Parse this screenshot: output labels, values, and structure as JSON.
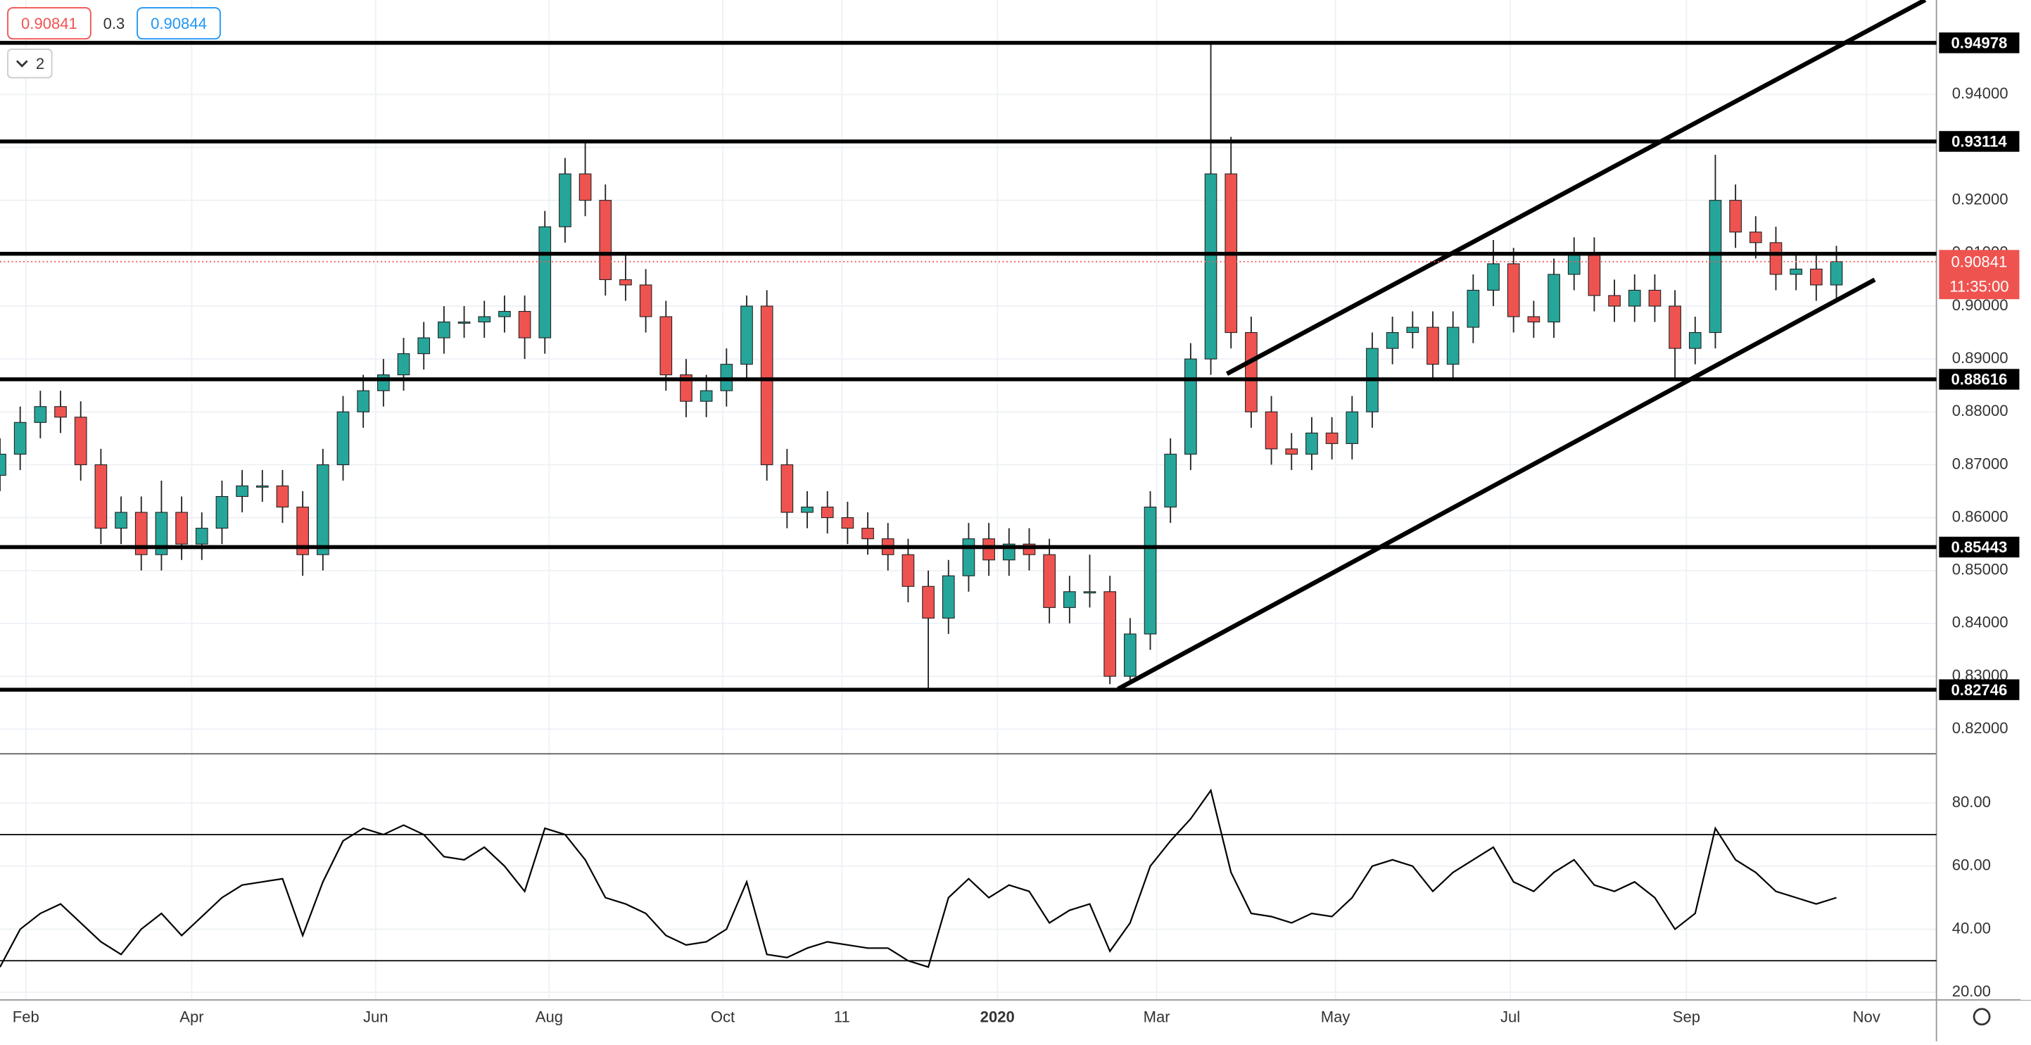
{
  "legend": {
    "price": "0.90841",
    "spread": "0.3",
    "ask": "0.90844",
    "panes": "2"
  },
  "chart_data": [
    {
      "type": "candlestick",
      "up_color": "#26a69a",
      "down_color": "#ef5350",
      "x_labels": [
        "Feb",
        "Apr",
        "Jun",
        "Aug",
        "Oct",
        "11",
        "2020",
        "Mar",
        "May",
        "Jul",
        "Sep",
        "Nov"
      ],
      "open": [
        0.868,
        0.872,
        0.878,
        0.881,
        0.879,
        0.87,
        0.858,
        0.861,
        0.853,
        0.861,
        0.855,
        0.858,
        0.864,
        0.866,
        0.866,
        0.862,
        0.853,
        0.87,
        0.88,
        0.884,
        0.887,
        0.891,
        0.894,
        0.897,
        0.897,
        0.898,
        0.899,
        0.894,
        0.915,
        0.925,
        0.92,
        0.905,
        0.904,
        0.898,
        0.887,
        0.882,
        0.884,
        0.889,
        0.9,
        0.87,
        0.861,
        0.862,
        0.86,
        0.858,
        0.856,
        0.853,
        0.847,
        0.841,
        0.849,
        0.856,
        0.852,
        0.855,
        0.853,
        0.843,
        0.846,
        0.846,
        0.83,
        0.838,
        0.862,
        0.872,
        0.89,
        0.925,
        0.895,
        0.88,
        0.873,
        0.872,
        0.876,
        0.874,
        0.88,
        0.892,
        0.895,
        0.896,
        0.889,
        0.896,
        0.903,
        0.908,
        0.898,
        0.897,
        0.906,
        0.91,
        0.902,
        0.9,
        0.903,
        0.9,
        0.892,
        0.895,
        0.92,
        0.914,
        0.912,
        0.906,
        0.907,
        0.904
      ],
      "high": [
        0.875,
        0.881,
        0.884,
        0.884,
        0.882,
        0.873,
        0.864,
        0.864,
        0.867,
        0.864,
        0.861,
        0.867,
        0.869,
        0.869,
        0.869,
        0.865,
        0.873,
        0.883,
        0.887,
        0.89,
        0.894,
        0.897,
        0.9,
        0.9,
        0.901,
        0.902,
        0.902,
        0.918,
        0.928,
        0.931,
        0.923,
        0.91,
        0.907,
        0.901,
        0.89,
        0.887,
        0.892,
        0.902,
        0.903,
        0.873,
        0.865,
        0.865,
        0.863,
        0.861,
        0.859,
        0.856,
        0.85,
        0.852,
        0.859,
        0.859,
        0.858,
        0.858,
        0.856,
        0.849,
        0.853,
        0.849,
        0.841,
        0.865,
        0.875,
        0.893,
        0.9498,
        0.932,
        0.898,
        0.883,
        0.876,
        0.879,
        0.879,
        0.883,
        0.895,
        0.898,
        0.899,
        0.899,
        0.899,
        0.906,
        0.9125,
        0.911,
        0.901,
        0.909,
        0.913,
        0.913,
        0.905,
        0.906,
        0.906,
        0.903,
        0.898,
        0.9286,
        0.923,
        0.917,
        0.915,
        0.91,
        0.91,
        0.9114
      ],
      "low": [
        0.865,
        0.869,
        0.875,
        0.876,
        0.867,
        0.855,
        0.855,
        0.85,
        0.85,
        0.852,
        0.852,
        0.855,
        0.861,
        0.863,
        0.859,
        0.849,
        0.85,
        0.867,
        0.877,
        0.881,
        0.884,
        0.888,
        0.891,
        0.894,
        0.894,
        0.895,
        0.89,
        0.891,
        0.912,
        0.917,
        0.902,
        0.901,
        0.895,
        0.884,
        0.879,
        0.879,
        0.881,
        0.886,
        0.867,
        0.858,
        0.858,
        0.857,
        0.855,
        0.853,
        0.85,
        0.844,
        0.8275,
        0.838,
        0.846,
        0.849,
        0.849,
        0.85,
        0.84,
        0.84,
        0.843,
        0.8285,
        0.829,
        0.835,
        0.859,
        0.869,
        0.887,
        0.892,
        0.877,
        0.87,
        0.869,
        0.869,
        0.871,
        0.871,
        0.877,
        0.889,
        0.892,
        0.886,
        0.886,
        0.893,
        0.9,
        0.895,
        0.894,
        0.894,
        0.903,
        0.899,
        0.897,
        0.897,
        0.897,
        0.8865,
        0.889,
        0.892,
        0.911,
        0.909,
        0.903,
        0.903,
        0.901,
        0.9014
      ],
      "close": [
        0.872,
        0.878,
        0.881,
        0.879,
        0.87,
        0.858,
        0.861,
        0.853,
        0.861,
        0.855,
        0.858,
        0.864,
        0.866,
        0.866,
        0.862,
        0.853,
        0.87,
        0.88,
        0.884,
        0.887,
        0.891,
        0.894,
        0.897,
        0.897,
        0.898,
        0.899,
        0.894,
        0.915,
        0.925,
        0.92,
        0.905,
        0.904,
        0.898,
        0.887,
        0.882,
        0.884,
        0.889,
        0.9,
        0.87,
        0.861,
        0.862,
        0.86,
        0.858,
        0.856,
        0.853,
        0.847,
        0.841,
        0.849,
        0.856,
        0.852,
        0.855,
        0.853,
        0.843,
        0.846,
        0.846,
        0.83,
        0.838,
        0.862,
        0.872,
        0.89,
        0.925,
        0.895,
        0.88,
        0.873,
        0.872,
        0.876,
        0.874,
        0.88,
        0.892,
        0.895,
        0.896,
        0.889,
        0.896,
        0.903,
        0.908,
        0.898,
        0.897,
        0.906,
        0.91,
        0.902,
        0.9,
        0.903,
        0.9,
        0.892,
        0.895,
        0.92,
        0.914,
        0.912,
        0.906,
        0.907,
        0.904,
        0.90841
      ],
      "ylim": [
        0.81583,
        0.95788
      ],
      "yticks": [
        {
          "value": 0.82,
          "label": "0.82000"
        },
        {
          "value": 0.83,
          "label": "0.83000"
        },
        {
          "value": 0.84,
          "label": "0.84000"
        },
        {
          "value": 0.85,
          "label": "0.85000"
        },
        {
          "value": 0.86,
          "label": "0.86000"
        },
        {
          "value": 0.87,
          "label": "0.87000"
        },
        {
          "value": 0.88,
          "label": "0.88000"
        },
        {
          "value": 0.89,
          "label": "0.89000"
        },
        {
          "value": 0.9,
          "label": "0.90000"
        },
        {
          "value": 0.91,
          "label": "0.91000"
        },
        {
          "value": 0.92,
          "label": "0.92000"
        },
        {
          "value": 0.93,
          "label": "0.93000"
        },
        {
          "value": 0.94,
          "label": "0.94000"
        }
      ],
      "levels": [
        0.94978,
        0.93114,
        0.88616,
        0.85443,
        0.82746
      ],
      "covered_level": 0.9099,
      "trendlines": [
        {
          "x": [
            60.8,
            95.4
          ],
          "y": [
            0.8872,
            0.9579
          ]
        },
        {
          "x": [
            55.4,
            92.9
          ],
          "y": [
            0.8276,
            0.905
          ]
        }
      ],
      "last_price": 0.90841,
      "countdown": "11:35:00"
    },
    {
      "type": "line",
      "color": "#000000",
      "values": [
        28,
        40,
        45,
        48,
        42,
        36,
        32,
        40,
        45,
        38,
        44,
        50,
        54,
        55,
        56,
        38,
        55,
        68,
        72,
        70,
        73,
        70,
        63,
        62,
        66,
        60,
        52,
        72,
        70,
        62,
        50,
        48,
        45,
        38,
        35,
        36,
        40,
        55,
        32,
        31,
        34,
        36,
        35,
        34,
        34,
        30,
        28,
        50,
        56,
        50,
        54,
        52,
        42,
        46,
        48,
        33,
        42,
        60,
        68,
        75,
        84,
        58,
        45,
        44,
        42,
        45,
        44,
        50,
        60,
        62,
        60,
        52,
        58,
        62,
        66,
        55,
        52,
        58,
        62,
        54,
        52,
        55,
        50,
        40,
        45,
        72,
        62,
        58,
        52,
        50,
        48,
        50
      ],
      "ylim": [
        18.4,
        95.2
      ],
      "yticks": [
        {
          "value": 20,
          "label": "20.00"
        },
        {
          "value": 40,
          "label": "40.00"
        },
        {
          "value": 60,
          "label": "60.00"
        },
        {
          "value": 80,
          "label": "80.00"
        }
      ],
      "bands": [
        30,
        70
      ]
    }
  ]
}
